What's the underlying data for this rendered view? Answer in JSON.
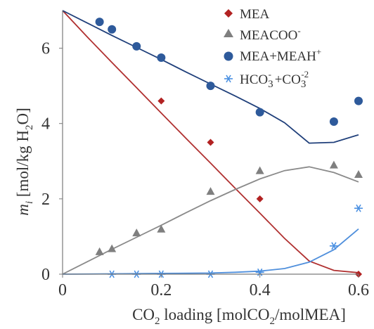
{
  "chart_data": {
    "type": "scatter",
    "title": "",
    "xlabel": {
      "main": "CO",
      "sub": "2",
      "rest": " loading [molCO",
      "sub2": "2",
      "rest2": "/molMEA]"
    },
    "ylabel": {
      "var": "m",
      "var_sub": "i",
      "text": " [mol/kg H",
      "sub": "2",
      "end": "O]"
    },
    "xlim": [
      0,
      0.6
    ],
    "ylim": [
      0,
      7
    ],
    "xticks": [
      0,
      0.2,
      0.4,
      0.6
    ],
    "xtick_labels": [
      "0",
      "0.2",
      "0.4",
      "0.6"
    ],
    "yticks": [
      0,
      2,
      4,
      6
    ],
    "ytick_labels": [
      "0",
      "2",
      "4",
      "6"
    ],
    "grid": false,
    "legend_position": "top-right",
    "series": [
      {
        "name": "MEA",
        "legend": {
          "text": "MEA",
          "sup": "",
          "sub": "",
          "tail": ""
        },
        "marker": "diamond",
        "color": "#b22222",
        "line_color": "#b03030",
        "points": [
          [
            0.2,
            4.6
          ],
          [
            0.3,
            3.5
          ],
          [
            0.4,
            2.0
          ],
          [
            0.6,
            0.0
          ]
        ],
        "line": [
          [
            0.0,
            7.0
          ],
          [
            0.05,
            6.3
          ],
          [
            0.1,
            5.62
          ],
          [
            0.15,
            4.95
          ],
          [
            0.2,
            4.28
          ],
          [
            0.25,
            3.61
          ],
          [
            0.3,
            2.95
          ],
          [
            0.35,
            2.28
          ],
          [
            0.4,
            1.62
          ],
          [
            0.45,
            0.95
          ],
          [
            0.5,
            0.35
          ],
          [
            0.55,
            0.1
          ],
          [
            0.6,
            0.04
          ]
        ]
      },
      {
        "name": "MEACOO-",
        "legend": {
          "text": "MEACOO",
          "sup": "-",
          "sub": "",
          "tail": ""
        },
        "marker": "triangle",
        "color": "#7f7f7f",
        "line_color": "#8a8a8a",
        "points": [
          [
            0.075,
            0.6
          ],
          [
            0.1,
            0.68
          ],
          [
            0.15,
            1.1
          ],
          [
            0.2,
            1.2
          ],
          [
            0.3,
            2.2
          ],
          [
            0.4,
            2.75
          ],
          [
            0.55,
            2.9
          ],
          [
            0.6,
            2.65
          ]
        ],
        "line": [
          [
            0.0,
            0.0
          ],
          [
            0.05,
            0.33
          ],
          [
            0.1,
            0.66
          ],
          [
            0.15,
            0.98
          ],
          [
            0.2,
            1.3
          ],
          [
            0.25,
            1.63
          ],
          [
            0.3,
            1.95
          ],
          [
            0.35,
            2.25
          ],
          [
            0.4,
            2.53
          ],
          [
            0.45,
            2.75
          ],
          [
            0.5,
            2.85
          ],
          [
            0.55,
            2.7
          ],
          [
            0.6,
            2.45
          ]
        ]
      },
      {
        "name": "MEA+MEAH+",
        "legend": {
          "text": "MEA+MEAH",
          "sup": "+",
          "sub": "",
          "tail": ""
        },
        "marker": "circle",
        "color": "#2e5a9b",
        "line_color": "#1f3f7a",
        "points": [
          [
            0.075,
            6.7
          ],
          [
            0.1,
            6.5
          ],
          [
            0.15,
            6.05
          ],
          [
            0.2,
            5.75
          ],
          [
            0.3,
            5.0
          ],
          [
            0.4,
            4.3
          ],
          [
            0.55,
            4.05
          ],
          [
            0.6,
            4.6
          ]
        ],
        "line": [
          [
            0.0,
            7.0
          ],
          [
            0.05,
            6.67
          ],
          [
            0.1,
            6.34
          ],
          [
            0.15,
            6.02
          ],
          [
            0.2,
            5.7
          ],
          [
            0.25,
            5.37
          ],
          [
            0.3,
            5.05
          ],
          [
            0.35,
            4.73
          ],
          [
            0.4,
            4.4
          ],
          [
            0.45,
            4.02
          ],
          [
            0.5,
            3.48
          ],
          [
            0.55,
            3.5
          ],
          [
            0.6,
            3.7
          ]
        ]
      },
      {
        "name": "HCO3- +CO3-2",
        "legend": {
          "text": "HCO",
          "sub": "3",
          "sup": "-",
          "tail": " +CO",
          "sub2": "3",
          "sup2": "-2"
        },
        "marker": "asterisk",
        "color": "#4a90e2",
        "line_color": "#4f8fdc",
        "points": [
          [
            0.1,
            0.0
          ],
          [
            0.15,
            0.0
          ],
          [
            0.2,
            0.0
          ],
          [
            0.3,
            0.0
          ],
          [
            0.4,
            0.05
          ],
          [
            0.55,
            0.75
          ],
          [
            0.6,
            1.75
          ]
        ],
        "line": [
          [
            0.0,
            0.0
          ],
          [
            0.1,
            0.01
          ],
          [
            0.2,
            0.02
          ],
          [
            0.3,
            0.03
          ],
          [
            0.35,
            0.05
          ],
          [
            0.4,
            0.08
          ],
          [
            0.45,
            0.15
          ],
          [
            0.5,
            0.32
          ],
          [
            0.55,
            0.65
          ],
          [
            0.6,
            1.2
          ]
        ]
      }
    ]
  }
}
